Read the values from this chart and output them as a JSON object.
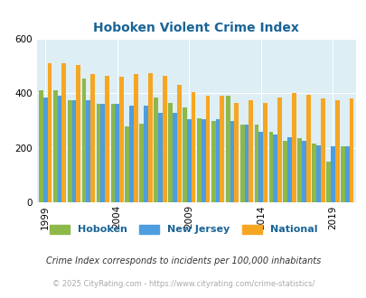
{
  "title": "Hoboken Violent Crime Index",
  "years": [
    1999,
    2000,
    2001,
    2002,
    2003,
    2004,
    2005,
    2006,
    2007,
    2008,
    2009,
    2010,
    2011,
    2012,
    2013,
    2014,
    2015,
    2016,
    2017,
    2018,
    2019,
    2020
  ],
  "hoboken": [
    410,
    410,
    375,
    455,
    360,
    360,
    280,
    290,
    385,
    365,
    350,
    310,
    300,
    390,
    285,
    285,
    260,
    225,
    235,
    215,
    150,
    205
  ],
  "newjersey": [
    385,
    390,
    375,
    375,
    360,
    360,
    355,
    355,
    330,
    330,
    305,
    305,
    305,
    300,
    285,
    260,
    250,
    240,
    225,
    210,
    205,
    205
  ],
  "national": [
    510,
    510,
    505,
    470,
    465,
    460,
    470,
    475,
    465,
    430,
    405,
    390,
    390,
    365,
    375,
    365,
    385,
    400,
    395,
    380,
    375,
    380
  ],
  "hoboken_color": "#8db84a",
  "newjersey_color": "#4d9de0",
  "national_color": "#f5a623",
  "bg_color": "#ddeef5",
  "ylim": [
    0,
    600
  ],
  "yticks": [
    0,
    200,
    400,
    600
  ],
  "xlabel_ticks": [
    1999,
    2004,
    2009,
    2014,
    2019
  ],
  "footer1": "Crime Index corresponds to incidents per 100,000 inhabitants",
  "footer2": "© 2025 CityRating.com - https://www.cityrating.com/crime-statistics/",
  "title_color": "#1a6496",
  "footer1_color": "#333333",
  "footer2_color": "#aaaaaa"
}
